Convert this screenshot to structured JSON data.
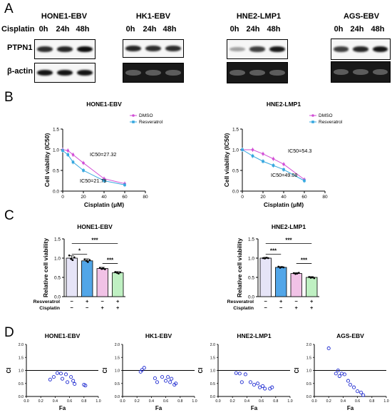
{
  "panel_letters": [
    "A",
    "B",
    "C",
    "D"
  ],
  "panel_a": {
    "cisplatin_label": "Cisplatin",
    "row_labels": [
      "PTPN1",
      "β-actin"
    ],
    "blots": [
      {
        "title": "HONE1-EBV",
        "times": [
          "0h",
          "24h",
          "48h"
        ],
        "ptpn1_intensity": [
          0.82,
          0.85,
          0.95
        ],
        "actin_intensity": [
          0.92,
          0.92,
          0.92
        ]
      },
      {
        "title": "HK1-EBV",
        "times": [
          "0h",
          "24h",
          "48h"
        ],
        "ptpn1_intensity": [
          0.85,
          0.82,
          0.82
        ],
        "actin_intensity": [
          0.9,
          0.9,
          0.9
        ]
      },
      {
        "title": "HNE2-LMP1",
        "times": [
          "0h",
          "24h",
          "48h"
        ],
        "ptpn1_intensity": [
          0.35,
          0.75,
          0.9
        ],
        "actin_intensity": [
          0.9,
          0.9,
          0.9
        ]
      },
      {
        "title": "AGS-EBV",
        "times": [
          "0h",
          "24h",
          "48h"
        ],
        "ptpn1_intensity": [
          0.75,
          0.85,
          0.92
        ],
        "actin_intensity": [
          0.9,
          0.9,
          0.9
        ]
      }
    ]
  },
  "chart_data": [
    {
      "id": "B1",
      "type": "line",
      "title": "HONE1-EBV",
      "xlabel": "Cisplatin (μM)",
      "ylabel": "Cell viability (IC50)",
      "xlim": [
        0,
        80
      ],
      "ylim": [
        0,
        1.5
      ],
      "xticks": [
        0,
        20,
        40,
        60,
        80
      ],
      "yticks": [
        0.0,
        0.5,
        1.0,
        1.5
      ],
      "legend": "top-right",
      "series": [
        {
          "name": "DMSO",
          "color": "#d24fd6",
          "x": [
            0,
            5,
            10,
            20,
            40,
            60
          ],
          "y": [
            1.0,
            0.98,
            0.88,
            0.68,
            0.3,
            0.18
          ]
        },
        {
          "name": "Resveratrol",
          "color": "#35a7df",
          "x": [
            0,
            5,
            10,
            20,
            40,
            60
          ],
          "y": [
            0.98,
            0.88,
            0.7,
            0.5,
            0.25,
            0.15
          ]
        }
      ],
      "annotations": [
        "IC50=27.32",
        "IC50=21.79"
      ]
    },
    {
      "id": "B2",
      "type": "line",
      "title": "HNE2-LMP1",
      "xlabel": "Cisplatin (μM)",
      "ylabel": "Cell viability (IC50)",
      "xlim": [
        0,
        80
      ],
      "ylim": [
        0,
        1.5
      ],
      "xticks": [
        0,
        20,
        40,
        60,
        80
      ],
      "yticks": [
        0.0,
        0.5,
        1.0,
        1.5
      ],
      "legend": "top-right",
      "series": [
        {
          "name": "DMSO",
          "color": "#d24fd6",
          "x": [
            0,
            10,
            20,
            30,
            40,
            60
          ],
          "y": [
            1.0,
            1.0,
            0.9,
            0.78,
            0.65,
            0.28
          ]
        },
        {
          "name": "Resveratrol",
          "color": "#35a7df",
          "x": [
            0,
            10,
            20,
            30,
            40,
            60
          ],
          "y": [
            1.0,
            0.85,
            0.72,
            0.62,
            0.52,
            0.25
          ]
        }
      ],
      "annotations": [
        "IC50=54.3",
        "IC50=49.08"
      ]
    },
    {
      "id": "C1",
      "type": "bar",
      "title": "HONE1-EBV",
      "ylabel": "Relative cell viability",
      "ylim": [
        0,
        1.5
      ],
      "yticks": [
        0.0,
        0.5,
        1.0,
        1.5
      ],
      "row_labels": [
        "Resveratrol",
        "Cisplatin"
      ],
      "conditions": [
        [
          "−",
          "−"
        ],
        [
          "+",
          "−"
        ],
        [
          "−",
          "+"
        ],
        [
          "+",
          "+"
        ]
      ],
      "values": [
        1.0,
        0.93,
        0.73,
        0.62
      ],
      "errors": [
        0.06,
        0.05,
        0.03,
        0.03
      ],
      "colors": [
        "#e6e4f7",
        "#52a6e8",
        "#f1c2e6",
        "#bff0c2"
      ],
      "points": [
        [
          1.07,
          0.98,
          0.95,
          1.02
        ],
        [
          0.97,
          0.93,
          0.9,
          0.95
        ],
        [
          0.75,
          0.72,
          0.73,
          0.71
        ],
        [
          0.64,
          0.62,
          0.6,
          0.63
        ]
      ],
      "significance": [
        {
          "from": 0,
          "to": 3,
          "label": "***"
        },
        {
          "from": 0,
          "to": 1,
          "label": "*"
        },
        {
          "from": 2,
          "to": 3,
          "label": "***"
        }
      ]
    },
    {
      "id": "C2",
      "type": "bar",
      "title": "HNE2-LMP1",
      "ylabel": "Relative cell viability",
      "ylim": [
        0,
        1.5
      ],
      "yticks": [
        0.0,
        0.5,
        1.0,
        1.5
      ],
      "row_labels": [
        "Resveratrol",
        "Cisplatin"
      ],
      "conditions": [
        [
          "−",
          "−"
        ],
        [
          "+",
          "−"
        ],
        [
          "−",
          "+"
        ],
        [
          "+",
          "+"
        ]
      ],
      "values": [
        1.0,
        0.76,
        0.6,
        0.5
      ],
      "errors": [
        0.02,
        0.02,
        0.02,
        0.02
      ],
      "colors": [
        "#e6e4f7",
        "#52a6e8",
        "#f1c2e6",
        "#bff0c2"
      ],
      "points": [
        [
          1.0,
          0.99,
          1.01,
          1.0
        ],
        [
          0.78,
          0.75,
          0.77,
          0.76
        ],
        [
          0.61,
          0.59,
          0.6,
          0.62
        ],
        [
          0.51,
          0.49,
          0.5,
          0.48
        ]
      ],
      "significance": [
        {
          "from": 0,
          "to": 3,
          "label": "***"
        },
        {
          "from": 0,
          "to": 1,
          "label": "***"
        },
        {
          "from": 2,
          "to": 3,
          "label": "***"
        }
      ]
    },
    {
      "id": "D1",
      "type": "scatter",
      "title": "HONE1-EBV",
      "xlabel": "Fa",
      "ylabel": "CI",
      "xlim": [
        0,
        1.0
      ],
      "ylim": [
        0,
        2.0
      ],
      "xticks": [
        0.0,
        0.2,
        0.4,
        0.6,
        0.8,
        1.0
      ],
      "yticks": [
        0.0,
        0.5,
        1.0,
        1.5,
        2.0
      ],
      "reference_line": 1.0,
      "points": [
        [
          0.33,
          0.65
        ],
        [
          0.38,
          0.75
        ],
        [
          0.43,
          0.9
        ],
        [
          0.48,
          0.88
        ],
        [
          0.5,
          0.68
        ],
        [
          0.55,
          0.85
        ],
        [
          0.57,
          0.55
        ],
        [
          0.62,
          0.75
        ],
        [
          0.65,
          0.6
        ],
        [
          0.67,
          0.48
        ],
        [
          0.8,
          0.45
        ],
        [
          0.82,
          0.42
        ]
      ]
    },
    {
      "id": "D2",
      "type": "scatter",
      "title": "HK1-EBV",
      "xlabel": "Fa",
      "ylabel": "CI",
      "xlim": [
        0,
        1.0
      ],
      "ylim": [
        0,
        2.0
      ],
      "xticks": [
        0.0,
        0.2,
        0.4,
        0.6,
        0.8,
        1.0
      ],
      "yticks": [
        0.0,
        0.5,
        1.0,
        1.5,
        2.0
      ],
      "reference_line": 1.0,
      "points": [
        [
          0.25,
          0.95
        ],
        [
          0.27,
          1.02
        ],
        [
          0.3,
          1.1
        ],
        [
          0.45,
          0.7
        ],
        [
          0.48,
          0.55
        ],
        [
          0.55,
          0.75
        ],
        [
          0.6,
          0.6
        ],
        [
          0.63,
          0.75
        ],
        [
          0.66,
          0.55
        ],
        [
          0.68,
          0.68
        ],
        [
          0.72,
          0.45
        ],
        [
          0.74,
          0.5
        ]
      ]
    },
    {
      "id": "D3",
      "type": "scatter",
      "title": "HNE2-LMP1",
      "xlabel": "Fa",
      "ylabel": "CI",
      "xlim": [
        0,
        1.0
      ],
      "ylim": [
        0,
        2.0
      ],
      "xticks": [
        0.0,
        0.2,
        0.4,
        0.6,
        0.8,
        1.0
      ],
      "yticks": [
        0.0,
        0.5,
        1.0,
        1.5,
        2.0
      ],
      "reference_line": 1.0,
      "points": [
        [
          0.25,
          0.9
        ],
        [
          0.3,
          0.88
        ],
        [
          0.33,
          0.55
        ],
        [
          0.38,
          0.85
        ],
        [
          0.45,
          0.55
        ],
        [
          0.5,
          0.45
        ],
        [
          0.55,
          0.5
        ],
        [
          0.58,
          0.35
        ],
        [
          0.62,
          0.4
        ],
        [
          0.65,
          0.3
        ],
        [
          0.72,
          0.3
        ],
        [
          0.75,
          0.35
        ]
      ]
    },
    {
      "id": "D4",
      "type": "scatter",
      "title": "AGS-EBV",
      "xlabel": "Fa",
      "ylabel": "CI",
      "xlim": [
        0,
        1.0
      ],
      "ylim": [
        0,
        2.0
      ],
      "xticks": [
        0.0,
        0.2,
        0.4,
        0.6,
        0.8,
        1.0
      ],
      "yticks": [
        0.0,
        0.5,
        1.0,
        1.5,
        2.0
      ],
      "reference_line": 1.0,
      "points": [
        [
          0.2,
          1.85
        ],
        [
          0.3,
          0.88
        ],
        [
          0.33,
          1.0
        ],
        [
          0.35,
          0.78
        ],
        [
          0.38,
          0.88
        ],
        [
          0.42,
          0.85
        ],
        [
          0.47,
          0.6
        ],
        [
          0.5,
          0.45
        ],
        [
          0.55,
          0.35
        ],
        [
          0.6,
          0.2
        ],
        [
          0.65,
          0.15
        ],
        [
          0.68,
          0.05
        ]
      ]
    }
  ]
}
